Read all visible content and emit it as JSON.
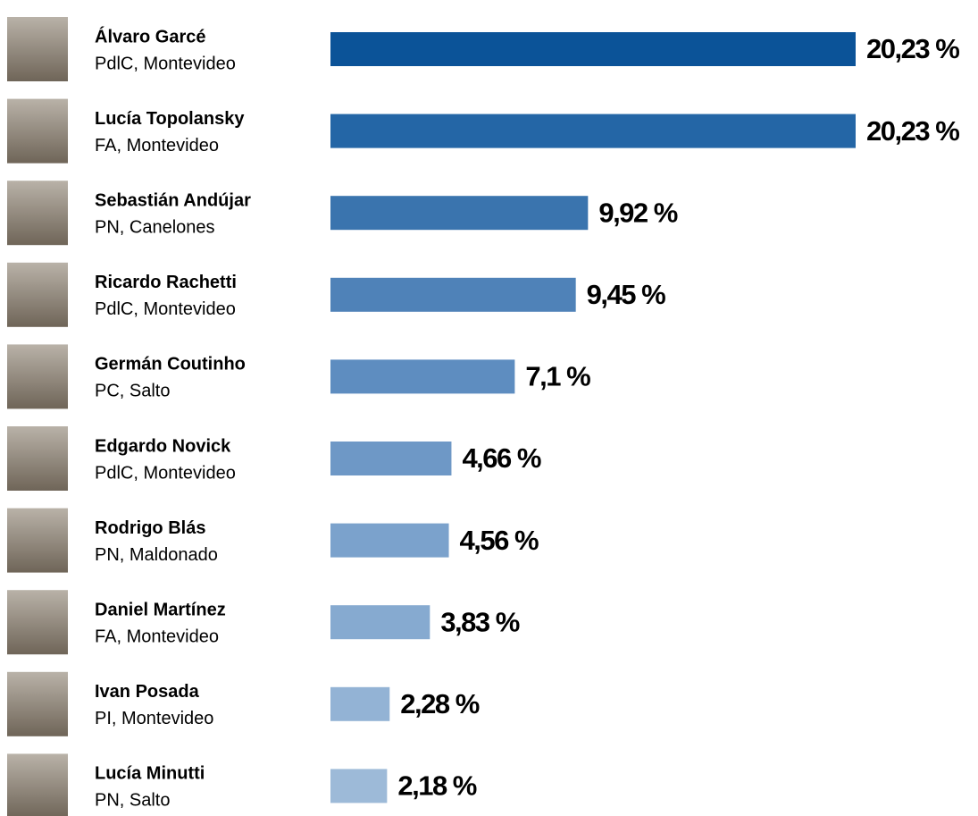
{
  "chart_data": {
    "type": "bar",
    "categories": [
      "Álvaro Garcé",
      "Lucía Topolansky",
      "Sebastián Andújar",
      "Ricardo Rachetti",
      "Germán Coutinho",
      "Edgardo Novick",
      "Rodrigo Blás",
      "Daniel Martínez",
      "Ivan Posada",
      "Lucía Minutti"
    ],
    "subtitles": [
      "PdlC, Montevideo",
      "FA, Montevideo",
      "PN, Canelones",
      "PdlC, Montevideo",
      "PC, Salto",
      "PdlC, Montevideo",
      "PN, Maldonado",
      "FA, Montevideo",
      "PI, Montevideo",
      "PN, Salto"
    ],
    "values": [
      20.23,
      20.23,
      9.92,
      9.45,
      7.1,
      4.66,
      4.56,
      3.83,
      2.28,
      2.18
    ],
    "value_labels": [
      "20,23 %",
      "20,23 %",
      "9,92 %",
      "9,45 %",
      "7,1 %",
      "4,66 %",
      "4,56 %",
      "3,83 %",
      "2,28 %",
      "2,18 %"
    ],
    "colors": [
      "#0b5398",
      "#2466a6",
      "#3a74ae",
      "#4f82b8",
      "#5e8dc0",
      "#6e98c6",
      "#7ba2cc",
      "#86aad0",
      "#93b3d5",
      "#9dbad8"
    ]
  }
}
